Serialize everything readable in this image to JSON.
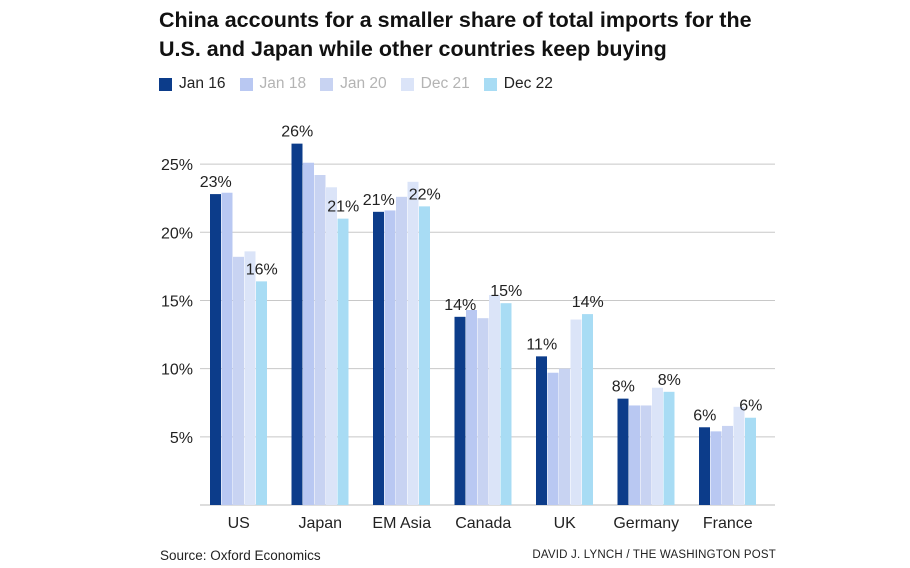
{
  "chart_data": {
    "type": "bar",
    "title": "China accounts for a smaller share of total imports for the U.S. and Japan while other countries keep buying",
    "categories": [
      "US",
      "Japan",
      "EM Asia",
      "Canada",
      "UK",
      "Germany",
      "France"
    ],
    "series": [
      {
        "name": "Jan 16",
        "color": "#0c3c8a",
        "values": [
          22.8,
          26.5,
          21.5,
          13.8,
          10.9,
          7.8,
          5.7
        ]
      },
      {
        "name": "Jan 18",
        "color": "#b9c8f2",
        "values": [
          22.9,
          25.1,
          21.6,
          14.3,
          9.7,
          7.3,
          5.4
        ]
      },
      {
        "name": "Jan 20",
        "color": "#c8d3f2",
        "values": [
          18.2,
          24.2,
          22.6,
          13.7,
          10.0,
          7.3,
          5.8
        ]
      },
      {
        "name": "Dec 21",
        "color": "#dbe4f8",
        "values": [
          18.6,
          23.3,
          23.7,
          15.4,
          13.6,
          8.6,
          7.2
        ]
      },
      {
        "name": "Dec 22",
        "color": "#a8dcf4",
        "values": [
          16.4,
          21.0,
          21.9,
          14.8,
          14.0,
          8.3,
          6.4
        ]
      }
    ],
    "data_labels": [
      {
        "category": "US",
        "text": "23%",
        "series": "Jan 16"
      },
      {
        "category": "US",
        "text": "16%",
        "series": "Dec 22"
      },
      {
        "category": "Japan",
        "text": "26%",
        "series": "Jan 16"
      },
      {
        "category": "Japan",
        "text": "21%",
        "series": "Dec 22"
      },
      {
        "category": "EM Asia",
        "text": "21%",
        "series": "Jan 16"
      },
      {
        "category": "EM Asia",
        "text": "22%",
        "series": "Dec 22"
      },
      {
        "category": "Canada",
        "text": "14%",
        "series": "Jan 16"
      },
      {
        "category": "Canada",
        "text": "15%",
        "series": "Dec 22"
      },
      {
        "category": "UK",
        "text": "11%",
        "series": "Jan 16"
      },
      {
        "category": "UK",
        "text": "14%",
        "series": "Dec 22"
      },
      {
        "category": "Germany",
        "text": "8%",
        "series": "Jan 16"
      },
      {
        "category": "Germany",
        "text": "8%",
        "series": "Dec 22"
      },
      {
        "category": "France",
        "text": "6%",
        "series": "Jan 16"
      },
      {
        "category": "France",
        "text": "6%",
        "series": "Dec 22"
      }
    ],
    "yticks": [
      5,
      10,
      15,
      20,
      25
    ],
    "ytick_labels": [
      "5%",
      "10%",
      "15%",
      "20%",
      "25%"
    ],
    "ylim": [
      0,
      27.5
    ],
    "grid": true,
    "legend_position": "top-left"
  },
  "legend": [
    {
      "label": "Jan 16",
      "color": "#0c3c8a",
      "dim": false
    },
    {
      "label": "Jan 18",
      "color": "#b9c8f2",
      "dim": true
    },
    {
      "label": "Jan 20",
      "color": "#c8d3f2",
      "dim": true
    },
    {
      "label": "Dec 21",
      "color": "#dbe4f8",
      "dim": true
    },
    {
      "label": "Dec 22",
      "color": "#a8dcf4",
      "dim": false
    }
  ],
  "footer": {
    "source": "Source: Oxford Economics",
    "credit": "DAVID J. LYNCH / THE WASHINGTON POST"
  }
}
